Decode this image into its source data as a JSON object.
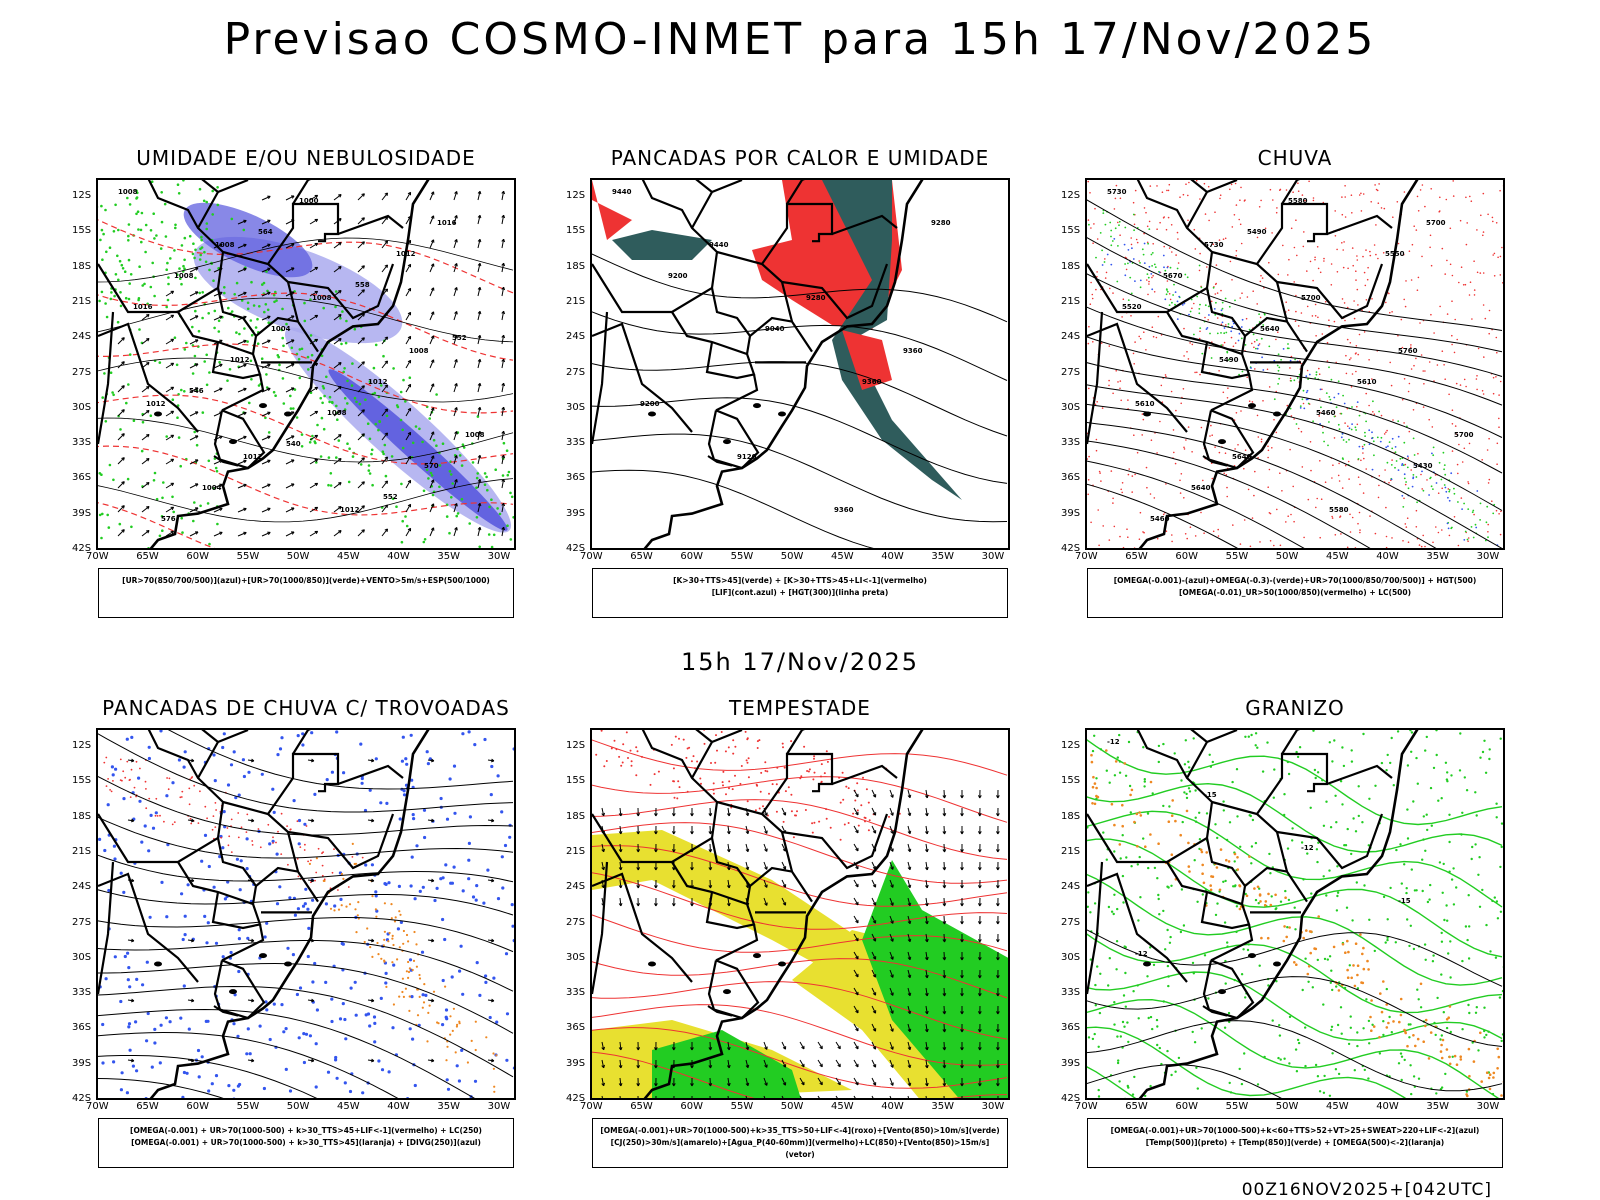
{
  "title": "Previsao COSMO-INMET  para 15h 17/Nov/2025",
  "mid_date": "15h 17/Nov/2025",
  "run_info": "00Z16NOV2025+[042UTC]",
  "lat_labels": [
    "12S",
    "15S",
    "18S",
    "21S",
    "24S",
    "27S",
    "30S",
    "33S",
    "36S",
    "39S",
    "42S"
  ],
  "lon_labels": [
    "70W",
    "65W",
    "60W",
    "55W",
    "50W",
    "45W",
    "40W",
    "35W",
    "30W"
  ],
  "panels": [
    {
      "id": "umidade",
      "title": "UMIDADE E/OU NEBULOSIDADE",
      "legend": [
        "[UR>70(850/700/500)](azul)+[UR>70(1000/850)](verde)+VENTO>5m/s+ESP(500/1000)"
      ],
      "contour_labels": [
        "1008",
        "1008",
        "1008",
        "1008",
        "1012",
        "1012",
        "1012",
        "1016",
        "1008",
        "1004",
        "1012",
        "1008",
        "1004",
        "1000",
        "1012",
        "1016",
        "1012",
        "1008",
        "570",
        "576",
        "564",
        "558",
        "552",
        "546",
        "540",
        "552"
      ]
    },
    {
      "id": "pancadas-calor",
      "title": "PANCADAS POR CALOR E UMIDADE",
      "legend": [
        "[K>30+TTS>45](verde) + [K>30+TTS>45+LI<-1](vermelho)",
        "[LIF](cont.azul) + [HGT(300)](linha preta)"
      ],
      "contour_labels": [
        "9440",
        "9440",
        "9280",
        "9360",
        "9200",
        "9120",
        "9360",
        "9280",
        "9200",
        "9040",
        "9360"
      ]
    },
    {
      "id": "chuva",
      "title": "CHUVA",
      "legend": [
        "[OMEGA(-0.001)-(azul)+OMEGA(-0.3)-(verde)+UR>70(1000/850/700/500)] + HGT(500)",
        "[OMEGA(-0.01)_UR>50(1000/850)(vermelho) + LC(500)"
      ],
      "contour_labels": [
        "5730",
        "5730",
        "5700",
        "5760",
        "5610",
        "5640",
        "5580",
        "5700",
        "5670",
        "5640",
        "5610",
        "5700",
        "5640",
        "5580",
        "5550",
        "5520",
        "5490",
        "5460",
        "5430",
        "5460",
        "5490"
      ]
    },
    {
      "id": "pancadas-trovoadas",
      "title": "PANCADAS DE CHUVA C/ TROVOADAS",
      "legend": [
        "[OMEGA(-0.001) + UR>70(1000-500) + k>30_TTS>45+LIF<-1](vermelho) + LC(250)",
        "[OMEGA(-0.001) + UR>70(1000-500) + k>30_TTS>45](laranja) + [DIVG(250)](azul)"
      ],
      "contour_labels": []
    },
    {
      "id": "tempestade",
      "title": "TEMPESTADE",
      "legend": [
        "[OMEGA(-0.001)+UR>70(1000-500)+k>35_TTS>50+LIF<-4](roxo)+[Vento(850)>10m/s](verde)",
        "[CJ(250)>30m/s](amarelo)+[Agua_P(40-60mm)](vermelho)+LC(850)+[Vento(850)>15m/s](vetor)"
      ],
      "contour_labels": []
    },
    {
      "id": "granizo",
      "title": "GRANIZO",
      "legend": [
        "[OMEGA(-0.001)+UR>70(1000-500)+k<60+TTS>52+VT>25+SWEAT>220+LIF<-2](azul)",
        "[Temp(500)](preto) + [Temp(850)](verde) + [OMEGA(500)<-2](laranja)"
      ],
      "contour_labels": [
        "-12",
        "-15",
        "-12",
        "-15",
        "-12"
      ]
    }
  ],
  "colors": {
    "humidity_blue": "#aaaaee",
    "humidity_blue_dark": "#5555dd",
    "green": "#22cc22",
    "red": "#ee3333",
    "dark_teal": "#2f5c5c",
    "yellow": "#e8e030",
    "orange": "#ee8822",
    "dot_blue": "#3355ee"
  }
}
